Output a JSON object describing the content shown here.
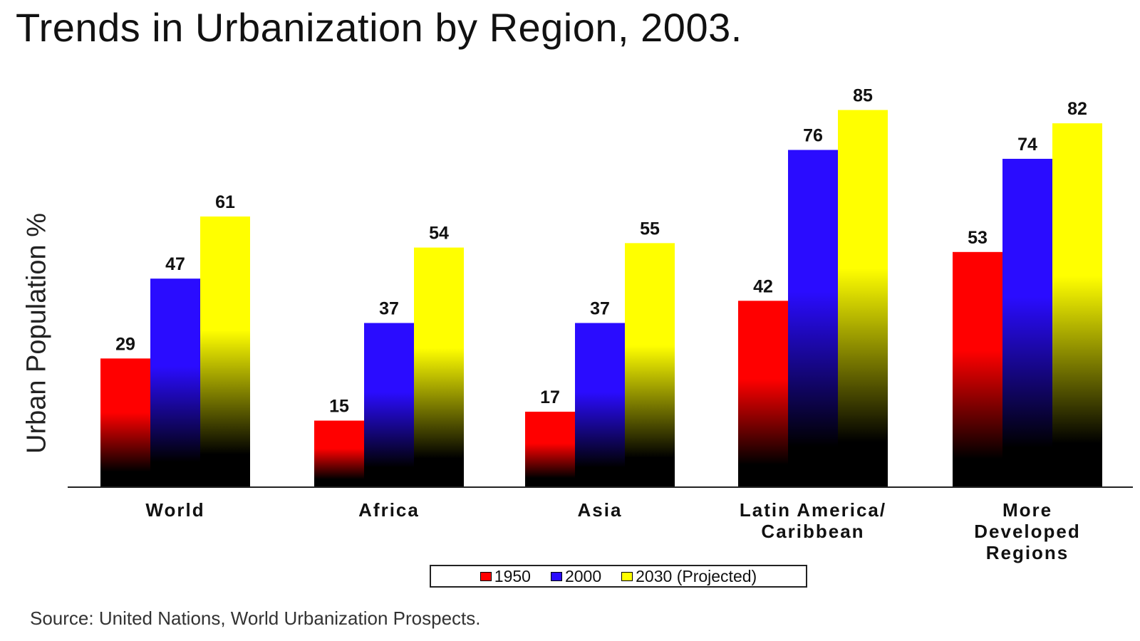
{
  "chart_data": {
    "type": "bar",
    "title": "Trends in Urbanization by Region, 2003.",
    "xlabel": "",
    "ylabel": "Urban Population %",
    "ylim": [
      0,
      100
    ],
    "grid": false,
    "legend_position": "bottom",
    "categories": [
      [
        "World"
      ],
      [
        "Africa"
      ],
      [
        "Asia"
      ],
      [
        "Latin America/",
        "Caribbean"
      ],
      [
        "More",
        "Developed",
        "Regions"
      ]
    ],
    "series": [
      {
        "name": "1950",
        "color": "#ff0000",
        "values": [
          29,
          15,
          17,
          42,
          53
        ]
      },
      {
        "name": "2000",
        "color": "#2a0cff",
        "values": [
          47,
          37,
          37,
          76,
          74
        ]
      },
      {
        "name": "2030 (Projected)",
        "color": "#ffff00",
        "values": [
          61,
          54,
          55,
          85,
          82
        ]
      }
    ]
  },
  "source": "Source: United Nations, World Urbanization Prospects."
}
